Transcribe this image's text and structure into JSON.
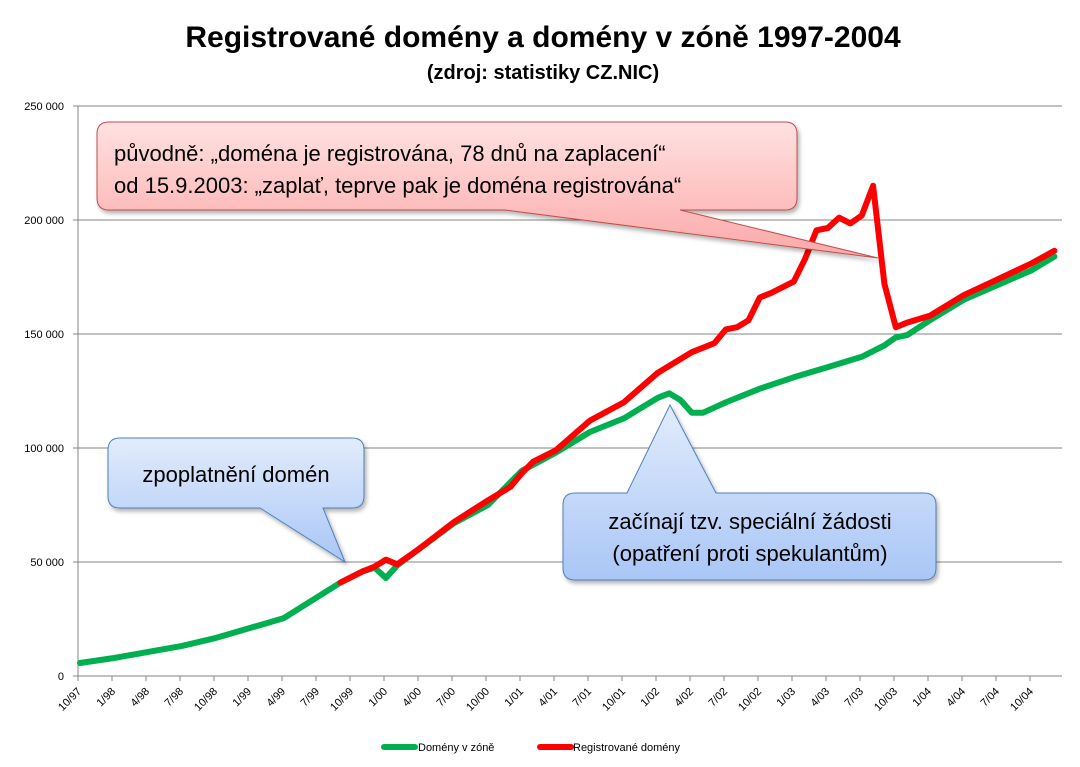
{
  "chart_data": {
    "type": "line",
    "title": "Registrované domény a domény v zóně 1997-2004",
    "subtitle": "(zdroj: statistiky CZ.NIC)",
    "xlabel": "",
    "ylabel": "",
    "ylim": [
      0,
      250000
    ],
    "yticks": [
      0,
      50000,
      100000,
      150000,
      200000,
      250000
    ],
    "ytick_labels": [
      "0",
      "50 000",
      "100 000",
      "150 000",
      "200 000",
      "250 000"
    ],
    "xticks": [
      "10/97",
      "1/98",
      "4/98",
      "7/98",
      "10/98",
      "1/99",
      "4/99",
      "7/99",
      "10/99",
      "1/00",
      "4/00",
      "7/00",
      "10/00",
      "1/01",
      "4/01",
      "7/01",
      "10/01",
      "1/02",
      "4/02",
      "7/02",
      "10/02",
      "1/03",
      "4/03",
      "7/03",
      "10/03",
      "1/04",
      "4/04",
      "7/04",
      "10/04"
    ],
    "x_start": "1997-10",
    "x_end": "2004-12",
    "grid": true,
    "legend_position": "bottom",
    "series": [
      {
        "name": "Domény v zóně",
        "color": "#00B050",
        "points": [
          [
            "1997-10",
            5700
          ],
          [
            "1998-01",
            7900
          ],
          [
            "1998-07",
            13200
          ],
          [
            "1998-10",
            16700
          ],
          [
            "1999-04",
            25400
          ],
          [
            "1999-09",
            41000
          ],
          [
            "1999-11",
            46000
          ],
          [
            "1999-12",
            47500
          ],
          [
            "2000-01",
            43000
          ],
          [
            "2000-02",
            48500
          ],
          [
            "2000-04",
            56000
          ],
          [
            "2000-07",
            67000
          ],
          [
            "2000-10",
            75000
          ],
          [
            "2001-01",
            90000
          ],
          [
            "2001-04",
            98000
          ],
          [
            "2001-07",
            107000
          ],
          [
            "2001-10",
            113000
          ],
          [
            "2002-01",
            122000
          ],
          [
            "2002-02",
            124000
          ],
          [
            "2002-03",
            121000
          ],
          [
            "2002-04",
            115500
          ],
          [
            "2002-05",
            115500
          ],
          [
            "2002-07",
            120000
          ],
          [
            "2002-10",
            126000
          ],
          [
            "2003-01",
            131000
          ],
          [
            "2003-04",
            135500
          ],
          [
            "2003-07",
            140000
          ],
          [
            "2003-09",
            145000
          ],
          [
            "2003-10",
            148500
          ],
          [
            "2003-11",
            149500
          ],
          [
            "2004-01",
            156000
          ],
          [
            "2004-04",
            165000
          ],
          [
            "2004-07",
            171500
          ],
          [
            "2004-10",
            178000
          ],
          [
            "2004-12",
            184000
          ]
        ]
      },
      {
        "name": "Registrované domény",
        "color": "#FF0000",
        "points": [
          [
            "1999-09",
            41000
          ],
          [
            "1999-11",
            46000
          ],
          [
            "1999-12",
            48000
          ],
          [
            "2000-01",
            51000
          ],
          [
            "2000-02",
            49000
          ],
          [
            "2000-04",
            56000
          ],
          [
            "2000-07",
            67500
          ],
          [
            "2000-10",
            77000
          ],
          [
            "2000-12",
            83000
          ],
          [
            "2001-01",
            89000
          ],
          [
            "2001-02",
            94000
          ],
          [
            "2001-04",
            99000
          ],
          [
            "2001-07",
            112000
          ],
          [
            "2001-10",
            120000
          ],
          [
            "2002-01",
            133000
          ],
          [
            "2002-04",
            142000
          ],
          [
            "2002-06",
            146000
          ],
          [
            "2002-07",
            152000
          ],
          [
            "2002-08",
            153000
          ],
          [
            "2002-09",
            156000
          ],
          [
            "2002-10",
            166000
          ],
          [
            "2002-11",
            168000
          ],
          [
            "2003-01",
            173000
          ],
          [
            "2003-02",
            183000
          ],
          [
            "2003-03",
            195500
          ],
          [
            "2003-04",
            196500
          ],
          [
            "2003-05",
            201000
          ],
          [
            "2003-06",
            198500
          ],
          [
            "2003-07",
            202000
          ],
          [
            "2003-08",
            215000
          ],
          [
            "2003-09",
            172000
          ],
          [
            "2003-10",
            153000
          ],
          [
            "2003-11",
            155000
          ],
          [
            "2004-01",
            158000
          ],
          [
            "2004-04",
            167000
          ],
          [
            "2004-07",
            174000
          ],
          [
            "2004-10",
            181000
          ],
          [
            "2004-12",
            186500
          ]
        ]
      }
    ],
    "annotations": [
      {
        "lines": [
          "původně:  „doména je registrována, 78 dnů na zaplacení“",
          "od 15.9.2003: „zaplať, teprve pak je doména registrována“"
        ],
        "points_to": "2003-09",
        "style": "red"
      },
      {
        "lines": [
          "zpoplatnění domén"
        ],
        "points_to": "1999-09",
        "style": "blue"
      },
      {
        "lines": [
          "začínají tzv. speciální žádosti",
          "(opatření proti spekulantům)"
        ],
        "points_to": "2002-02",
        "style": "blue"
      }
    ]
  }
}
